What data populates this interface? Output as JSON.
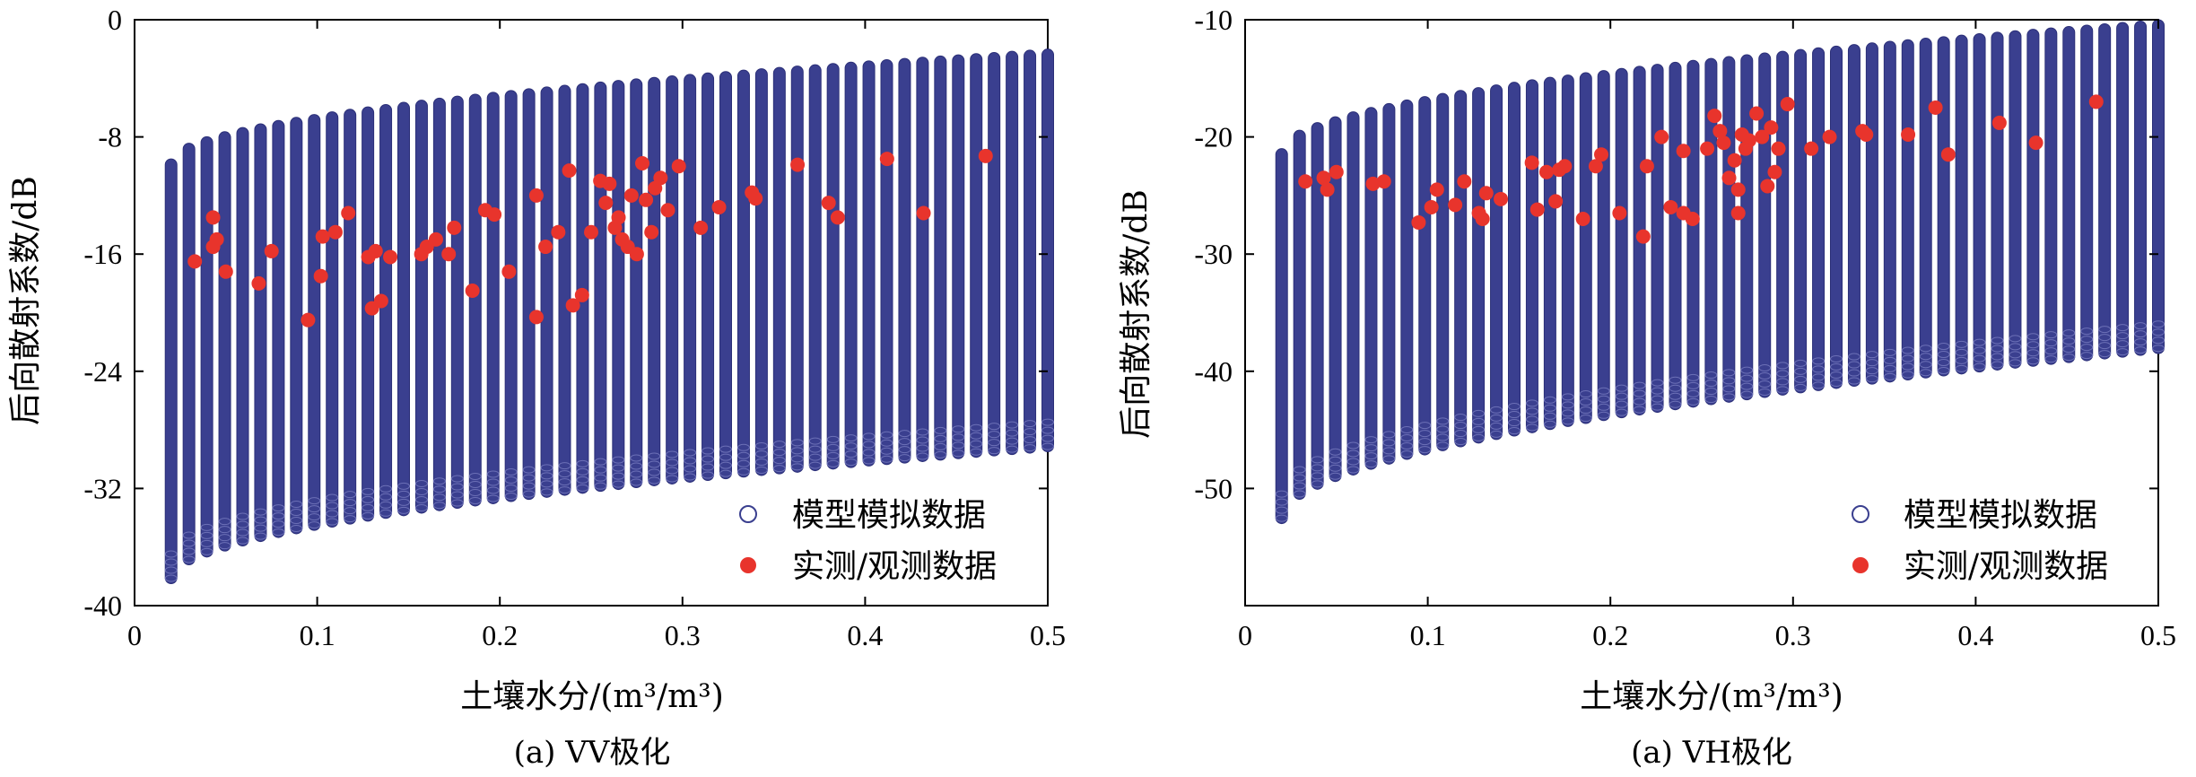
{
  "chart_data": [
    {
      "type": "scatter",
      "caption": "(a) VV极化",
      "xlabel": "土壤水分/(m³/m³)",
      "ylabel": "后向散射系数/dB",
      "xlim": [
        0,
        0.5
      ],
      "ylim": [
        -40,
        0
      ],
      "xticks": [
        "0",
        "0.1",
        "0.2",
        "0.3",
        "0.4",
        "0.5"
      ],
      "yticks": [
        "0",
        "-8",
        "-16",
        "-24",
        "-32",
        "-40"
      ],
      "grid": false,
      "legend_position": "bottom-right",
      "colors": {
        "model": "#3a3f8f",
        "observed": "#e8342c"
      },
      "series": [
        {
          "name": "模型模拟数据",
          "kind": "band",
          "x_start": 0.02,
          "x_end": 0.5,
          "columns": 50,
          "upper": {
            "at_x_start": -9.5,
            "at_x_end": -2.0
          },
          "lower": {
            "at_x_start": -38.5,
            "at_x_end": -29.5
          }
        },
        {
          "name": "实测/观测数据",
          "points": [
            [
              0.033,
              -16.5
            ],
            [
              0.043,
              -13.5
            ],
            [
              0.043,
              -15.5
            ],
            [
              0.045,
              -15.0
            ],
            [
              0.05,
              -17.2
            ],
            [
              0.068,
              -18.0
            ],
            [
              0.075,
              -15.8
            ],
            [
              0.095,
              -20.5
            ],
            [
              0.102,
              -17.5
            ],
            [
              0.103,
              -14.8
            ],
            [
              0.11,
              -14.5
            ],
            [
              0.117,
              -13.2
            ],
            [
              0.128,
              -16.2
            ],
            [
              0.13,
              -19.7
            ],
            [
              0.132,
              -15.8
            ],
            [
              0.135,
              -19.2
            ],
            [
              0.14,
              -16.2
            ],
            [
              0.157,
              -16.0
            ],
            [
              0.16,
              -15.5
            ],
            [
              0.165,
              -15.0
            ],
            [
              0.172,
              -16.0
            ],
            [
              0.175,
              -14.2
            ],
            [
              0.185,
              -18.5
            ],
            [
              0.192,
              -13.0
            ],
            [
              0.197,
              -13.3
            ],
            [
              0.205,
              -17.2
            ],
            [
              0.22,
              -20.3
            ],
            [
              0.22,
              -12.0
            ],
            [
              0.225,
              -15.5
            ],
            [
              0.232,
              -14.5
            ],
            [
              0.238,
              -10.3
            ],
            [
              0.24,
              -19.5
            ],
            [
              0.245,
              -18.8
            ],
            [
              0.25,
              -14.5
            ],
            [
              0.255,
              -11.0
            ],
            [
              0.258,
              -12.5
            ],
            [
              0.26,
              -11.2
            ],
            [
              0.263,
              -14.2
            ],
            [
              0.265,
              -13.5
            ],
            [
              0.267,
              -15.0
            ],
            [
              0.27,
              -15.5
            ],
            [
              0.272,
              -12.0
            ],
            [
              0.275,
              -16.0
            ],
            [
              0.278,
              -9.8
            ],
            [
              0.28,
              -12.3
            ],
            [
              0.283,
              -14.5
            ],
            [
              0.285,
              -11.5
            ],
            [
              0.288,
              -10.8
            ],
            [
              0.292,
              -13.0
            ],
            [
              0.298,
              -10.0
            ],
            [
              0.31,
              -14.2
            ],
            [
              0.32,
              -12.8
            ],
            [
              0.338,
              -11.8
            ],
            [
              0.34,
              -12.2
            ],
            [
              0.363,
              -9.9
            ],
            [
              0.38,
              -12.5
            ],
            [
              0.385,
              -13.5
            ],
            [
              0.412,
              -9.5
            ],
            [
              0.432,
              -13.2
            ],
            [
              0.466,
              -9.3
            ]
          ]
        }
      ]
    },
    {
      "type": "scatter",
      "caption": "(a) VH极化",
      "xlabel": "土壤水分/(m³/m³)",
      "ylabel": "后向散射系数/dB",
      "xlim": [
        0,
        0.5
      ],
      "ylim": [
        -60,
        -10
      ],
      "xticks": [
        "0",
        "0.1",
        "0.2",
        "0.3",
        "0.4",
        "0.5"
      ],
      "yticks": [
        "-10",
        "-20",
        "-30",
        "-40",
        "-50"
      ],
      "grid": false,
      "legend_position": "bottom-right",
      "colors": {
        "model": "#3a3f8f",
        "observed": "#e8342c"
      },
      "series": [
        {
          "name": "模型模拟数据",
          "kind": "band",
          "x_start": 0.02,
          "x_end": 0.5,
          "columns": 50,
          "upper": {
            "at_x_start": -21.0,
            "at_x_end": -10.0
          },
          "lower": {
            "at_x_start": -53.0,
            "at_x_end": -38.5
          }
        },
        {
          "name": "实测/观测数据",
          "points": [
            [
              0.033,
              -23.8
            ],
            [
              0.043,
              -23.5
            ],
            [
              0.045,
              -24.5
            ],
            [
              0.05,
              -23.0
            ],
            [
              0.07,
              -24.0
            ],
            [
              0.076,
              -23.8
            ],
            [
              0.095,
              -27.3
            ],
            [
              0.102,
              -26.0
            ],
            [
              0.105,
              -24.5
            ],
            [
              0.115,
              -25.8
            ],
            [
              0.12,
              -23.8
            ],
            [
              0.128,
              -26.5
            ],
            [
              0.13,
              -27.0
            ],
            [
              0.132,
              -24.8
            ],
            [
              0.14,
              -25.3
            ],
            [
              0.157,
              -22.2
            ],
            [
              0.16,
              -26.2
            ],
            [
              0.165,
              -23.0
            ],
            [
              0.17,
              -25.5
            ],
            [
              0.172,
              -22.8
            ],
            [
              0.175,
              -22.5
            ],
            [
              0.185,
              -27.0
            ],
            [
              0.192,
              -22.5
            ],
            [
              0.195,
              -21.5
            ],
            [
              0.205,
              -26.5
            ],
            [
              0.218,
              -28.5
            ],
            [
              0.22,
              -22.5
            ],
            [
              0.228,
              -20.0
            ],
            [
              0.233,
              -26.0
            ],
            [
              0.24,
              -26.5
            ],
            [
              0.24,
              -21.2
            ],
            [
              0.245,
              -27.0
            ],
            [
              0.253,
              -21.0
            ],
            [
              0.257,
              -18.2
            ],
            [
              0.26,
              -19.5
            ],
            [
              0.262,
              -20.5
            ],
            [
              0.265,
              -23.5
            ],
            [
              0.268,
              -22.0
            ],
            [
              0.27,
              -24.5
            ],
            [
              0.27,
              -26.5
            ],
            [
              0.272,
              -19.8
            ],
            [
              0.274,
              -21.0
            ],
            [
              0.276,
              -20.3
            ],
            [
              0.28,
              -18.0
            ],
            [
              0.283,
              -20.0
            ],
            [
              0.286,
              -24.2
            ],
            [
              0.288,
              -19.2
            ],
            [
              0.29,
              -23.0
            ],
            [
              0.292,
              -21.0
            ],
            [
              0.297,
              -17.2
            ],
            [
              0.31,
              -21.0
            ],
            [
              0.32,
              -20.0
            ],
            [
              0.338,
              -19.5
            ],
            [
              0.34,
              -19.8
            ],
            [
              0.363,
              -19.8
            ],
            [
              0.378,
              -17.5
            ],
            [
              0.385,
              -21.5
            ],
            [
              0.413,
              -18.8
            ],
            [
              0.433,
              -20.5
            ],
            [
              0.466,
              -17.0
            ]
          ]
        }
      ]
    }
  ],
  "legend": {
    "model_label": "模型模拟数据",
    "observed_label": "实测/观测数据"
  }
}
